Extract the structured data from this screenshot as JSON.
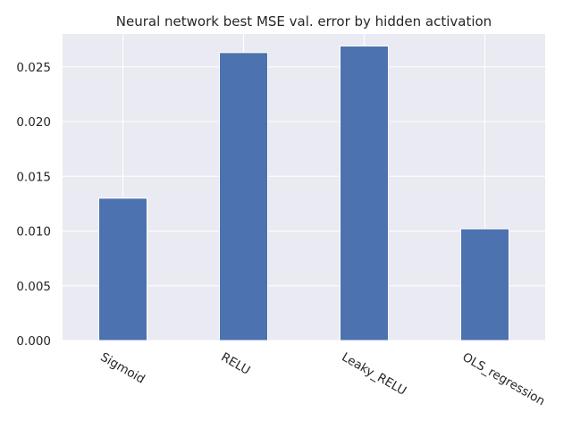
{
  "chart_data": {
    "type": "bar",
    "title": "Neural network best MSE val. error by hidden activation",
    "categories": [
      "Sigmoid",
      "RELU",
      "Leaky_RELU",
      "OLS_regression"
    ],
    "values": [
      0.013,
      0.0263,
      0.0269,
      0.0102
    ],
    "ylim": [
      0,
      0.028
    ],
    "yticks": [
      "0.000",
      "0.005",
      "0.010",
      "0.015",
      "0.020",
      "0.025"
    ],
    "ytick_values": [
      0,
      0.005,
      0.01,
      0.015,
      0.02,
      0.025
    ],
    "xlabel": "",
    "ylabel": "",
    "grid": true,
    "colors": {
      "bar": "#4c72b0",
      "background": "#eaeaf2",
      "grid": "#ffffff"
    }
  }
}
